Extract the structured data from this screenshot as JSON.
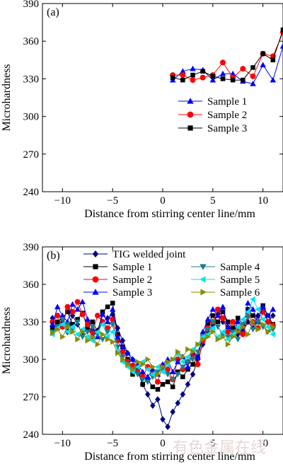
{
  "watermark": "有色金属在线",
  "chart_data": [
    {
      "type": "line",
      "panel_label": "(a)",
      "xlabel": "Distance from stirring center line/mm",
      "ylabel": "Microhardness",
      "xlim": [
        -12,
        12
      ],
      "ylim": [
        240,
        390
      ],
      "xticks": [
        -10,
        -5,
        0,
        5,
        10
      ],
      "yticks": [
        240,
        270,
        300,
        330,
        360,
        390
      ],
      "legend_position": "bottom-right",
      "series": [
        {
          "name": "Sample 1",
          "color": "#0000ff",
          "marker": "triangle-up",
          "x": [
            1,
            2,
            3,
            4,
            5,
            6,
            7,
            8,
            9,
            10,
            11,
            12
          ],
          "y": [
            329,
            336,
            338,
            337,
            329,
            334,
            334,
            328,
            326,
            341,
            329,
            356
          ]
        },
        {
          "name": "Sample 2",
          "color": "#ff0000",
          "marker": "circle",
          "x": [
            1,
            2,
            3,
            4,
            5,
            6,
            7,
            8,
            9,
            10,
            11,
            12
          ],
          "y": [
            333,
            333,
            329,
            331,
            333,
            343,
            331,
            338,
            332,
            350,
            348,
            367
          ]
        },
        {
          "name": "Sample 3",
          "color": "#000000",
          "marker": "square",
          "x": [
            1,
            2,
            3,
            4,
            5,
            6,
            7,
            8,
            9,
            10,
            11,
            12
          ],
          "y": [
            331,
            329,
            333,
            336,
            332,
            330,
            329,
            329,
            339,
            350,
            345,
            369
          ]
        }
      ]
    },
    {
      "type": "line",
      "panel_label": "(b)",
      "xlabel": "Distance from stirring center line/mm",
      "ylabel": "Microhardness",
      "xlim": [
        -12,
        12
      ],
      "ylim": [
        240,
        390
      ],
      "xticks": [
        -10,
        -5,
        0,
        5,
        10
      ],
      "yticks": [
        240,
        270,
        300,
        330,
        360,
        390
      ],
      "legend_position": "top",
      "series": [
        {
          "name": "TIG welded joint",
          "color": "#000080",
          "marker": "diamond",
          "x": [
            -11,
            -10.5,
            -10,
            -9.5,
            -9,
            -8.5,
            -8,
            -7.5,
            -7,
            -6.5,
            -6,
            -5.5,
            -5,
            -4.5,
            -4,
            -3.5,
            -3,
            -2.5,
            -2,
            -1.5,
            -1,
            -0.5,
            0,
            0.5,
            1,
            1.5,
            2,
            2.5,
            3,
            3.5,
            4,
            4.5,
            5,
            5.5,
            6,
            6.5,
            7,
            7.5,
            8,
            8.5,
            9,
            9.5,
            10,
            10.5,
            11
          ],
          "y": [
            333,
            326,
            330,
            322,
            335,
            328,
            320,
            325,
            318,
            323,
            330,
            333,
            336,
            325,
            315,
            305,
            300,
            290,
            280,
            272,
            263,
            268,
            252,
            246,
            258,
            265,
            272,
            280,
            288,
            300,
            312,
            322,
            328,
            336,
            330,
            326,
            325,
            320,
            322,
            330,
            325,
            335,
            340,
            330,
            335
          ]
        },
        {
          "name": "Sample 1",
          "color": "#000000",
          "marker": "square",
          "x": [
            -11,
            -10.5,
            -10,
            -9.5,
            -9,
            -8.5,
            -8,
            -7.5,
            -7,
            -6.5,
            -6,
            -5.5,
            -5,
            -4.5,
            -4,
            -3.5,
            -3,
            -2.5,
            -2,
            -1.5,
            -1,
            -0.5,
            0,
            0.5,
            1,
            1.5,
            2,
            2.5,
            3,
            3.5,
            4,
            4.5,
            5,
            5.5,
            6,
            6.5,
            7,
            7.5,
            8,
            8.5,
            9,
            9.5,
            10,
            10.5,
            11
          ],
          "y": [
            325,
            330,
            333,
            338,
            328,
            332,
            337,
            325,
            330,
            322,
            338,
            342,
            345,
            320,
            310,
            300,
            288,
            292,
            280,
            284,
            278,
            276,
            280,
            282,
            278,
            290,
            286,
            292,
            296,
            302,
            318,
            328,
            335,
            330,
            338,
            330,
            325,
            333,
            328,
            340,
            335,
            330,
            343,
            335,
            328
          ]
        },
        {
          "name": "Sample 2",
          "color": "#ff0000",
          "marker": "circle",
          "x": [
            -11,
            -10.5,
            -10,
            -9.5,
            -9,
            -8.5,
            -8,
            -7.5,
            -7,
            -6.5,
            -6,
            -5.5,
            -5,
            -4.5,
            -4,
            -3.5,
            -3,
            -2.5,
            -2,
            -1.5,
            -1,
            -0.5,
            0,
            0.5,
            1,
            1.5,
            2,
            2.5,
            3,
            3.5,
            4,
            4.5,
            5,
            5.5,
            6,
            6.5,
            7,
            7.5,
            8,
            8.5,
            9,
            9.5,
            10,
            10.5,
            11
          ],
          "y": [
            330,
            335,
            326,
            342,
            338,
            346,
            336,
            328,
            322,
            335,
            330,
            325,
            332,
            315,
            306,
            298,
            295,
            290,
            286,
            294,
            288,
            282,
            295,
            292,
            284,
            300,
            292,
            298,
            304,
            296,
            315,
            325,
            330,
            340,
            333,
            322,
            330,
            325,
            320,
            335,
            330,
            325,
            338,
            330,
            327
          ]
        },
        {
          "name": "Sample 3",
          "color": "#0000ff",
          "marker": "triangle-up",
          "x": [
            -11,
            -10.5,
            -10,
            -9.5,
            -9,
            -8.5,
            -8,
            -7.5,
            -7,
            -6.5,
            -6,
            -5.5,
            -5,
            -4.5,
            -4,
            -3.5,
            -3,
            -2.5,
            -2,
            -1.5,
            -1,
            -0.5,
            0,
            0.5,
            1,
            1.5,
            2,
            2.5,
            3,
            3.5,
            4,
            4.5,
            5,
            5.5,
            6,
            6.5,
            7,
            7.5,
            8,
            8.5,
            9,
            9.5,
            10,
            10.5,
            11
          ],
          "y": [
            328,
            342,
            335,
            330,
            344,
            340,
            346,
            332,
            325,
            318,
            336,
            330,
            340,
            318,
            310,
            305,
            300,
            296,
            290,
            286,
            292,
            288,
            296,
            300,
            290,
            298,
            302,
            294,
            306,
            302,
            322,
            332,
            340,
            335,
            342,
            326,
            320,
            330,
            325,
            345,
            340,
            330,
            342,
            335,
            340
          ]
        },
        {
          "name": "Sample 4",
          "color": "#1a7f8a",
          "marker": "triangle-down",
          "x": [
            -11,
            -10.5,
            -10,
            -9.5,
            -9,
            -8.5,
            -8,
            -7.5,
            -7,
            -6.5,
            -6,
            -5.5,
            -5,
            -4.5,
            -4,
            -3.5,
            -3,
            -2.5,
            -2,
            -1.5,
            -1,
            -0.5,
            0,
            0.5,
            1,
            1.5,
            2,
            2.5,
            3,
            3.5,
            4,
            4.5,
            5,
            5.5,
            6,
            6.5,
            7,
            7.5,
            8,
            8.5,
            9,
            9.5,
            10,
            10.5,
            11
          ],
          "y": [
            322,
            326,
            332,
            328,
            324,
            330,
            318,
            322,
            326,
            320,
            316,
            322,
            328,
            310,
            302,
            296,
            292,
            288,
            284,
            282,
            286,
            290,
            292,
            288,
            284,
            288,
            294,
            298,
            300,
            306,
            318,
            324,
            330,
            326,
            320,
            318,
            322,
            316,
            328,
            334,
            324,
            330,
            326,
            322,
            324
          ]
        },
        {
          "name": "Sample 5",
          "color": "#00e5ee",
          "marker": "triangle-left",
          "x": [
            -11,
            -10.5,
            -10,
            -9.5,
            -9,
            -8.5,
            -8,
            -7.5,
            -7,
            -6.5,
            -6,
            -5.5,
            -5,
            -4.5,
            -4,
            -3.5,
            -3,
            -2.5,
            -2,
            -1.5,
            -1,
            -0.5,
            0,
            0.5,
            1,
            1.5,
            2,
            2.5,
            3,
            3.5,
            4,
            4.5,
            5,
            5.5,
            6,
            6.5,
            7,
            7.5,
            8,
            8.5,
            9,
            9.5,
            10,
            10.5,
            11
          ],
          "y": [
            320,
            325,
            328,
            322,
            326,
            320,
            324,
            318,
            315,
            322,
            328,
            318,
            322,
            306,
            298,
            294,
            290,
            294,
            298,
            292,
            288,
            294,
            290,
            296,
            300,
            304,
            298,
            302,
            308,
            312,
            318,
            320,
            325,
            318,
            322,
            316,
            320,
            326,
            332,
            338,
            348,
            340,
            332,
            326,
            320
          ]
        },
        {
          "name": "Sample 6",
          "color": "#8b8b00",
          "marker": "triangle-right",
          "x": [
            -11,
            -10.5,
            -10,
            -9.5,
            -9,
            -8.5,
            -8,
            -7.5,
            -7,
            -6.5,
            -6,
            -5.5,
            -5,
            -4.5,
            -4,
            -3.5,
            -3,
            -2.5,
            -2,
            -1.5,
            -1,
            -0.5,
            0,
            0.5,
            1,
            1.5,
            2,
            2.5,
            3,
            3.5,
            4,
            4.5,
            5,
            5.5,
            6,
            6.5,
            7,
            7.5,
            8,
            8.5,
            9,
            9.5,
            10,
            10.5,
            11
          ],
          "y": [
            321,
            324,
            318,
            326,
            322,
            316,
            322,
            315,
            318,
            312,
            320,
            316,
            314,
            305,
            300,
            296,
            292,
            298,
            296,
            300,
            294,
            288,
            294,
            298,
            300,
            306,
            302,
            308,
            306,
            312,
            316,
            318,
            322,
            316,
            318,
            312,
            318,
            322,
            326,
            320,
            330,
            324,
            328,
            322,
            326
          ]
        }
      ]
    }
  ]
}
